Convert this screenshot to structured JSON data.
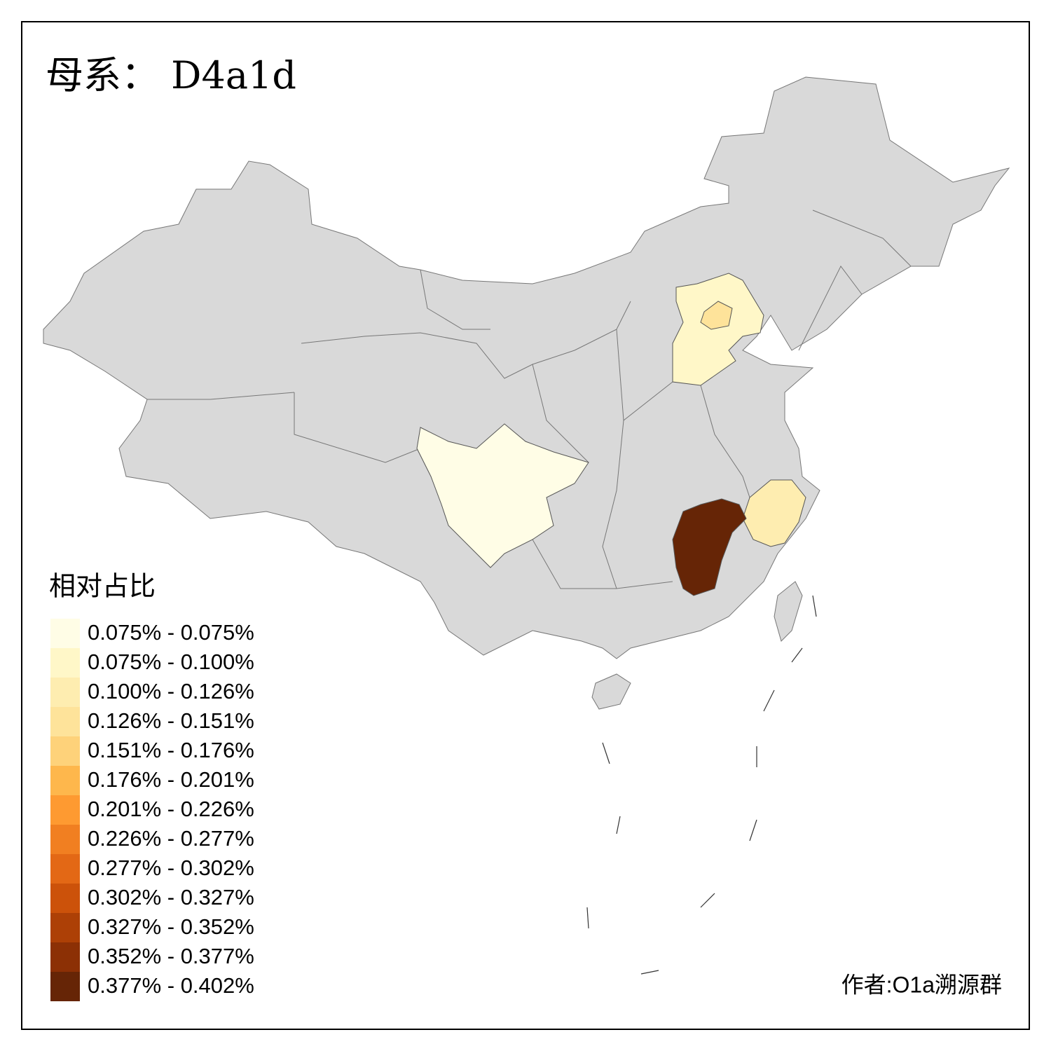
{
  "title": "母系： D4a1d",
  "legend": {
    "title": "相对占比",
    "items": [
      {
        "label": "0.075% - 0.075%",
        "color": "#fffde6"
      },
      {
        "label": "0.075% - 0.100%",
        "color": "#fff7c8"
      },
      {
        "label": "0.100% - 0.126%",
        "color": "#feedb0"
      },
      {
        "label": "0.126% - 0.151%",
        "color": "#fee39a"
      },
      {
        "label": "0.151% - 0.176%",
        "color": "#fed27a"
      },
      {
        "label": "0.176% - 0.201%",
        "color": "#feb74c"
      },
      {
        "label": "0.201% - 0.226%",
        "color": "#fe9a31"
      },
      {
        "label": "0.226% - 0.277%",
        "color": "#f17f21"
      },
      {
        "label": "0.277% - 0.302%",
        "color": "#e36815"
      },
      {
        "label": "0.302% - 0.327%",
        "color": "#cc520a"
      },
      {
        "label": "0.327% - 0.352%",
        "color": "#ad4006"
      },
      {
        "label": "0.352% - 0.377%",
        "color": "#8c3005"
      },
      {
        "label": "0.377% - 0.402%",
        "color": "#662506"
      }
    ]
  },
  "credit": "作者:O1a溯源群"
}
